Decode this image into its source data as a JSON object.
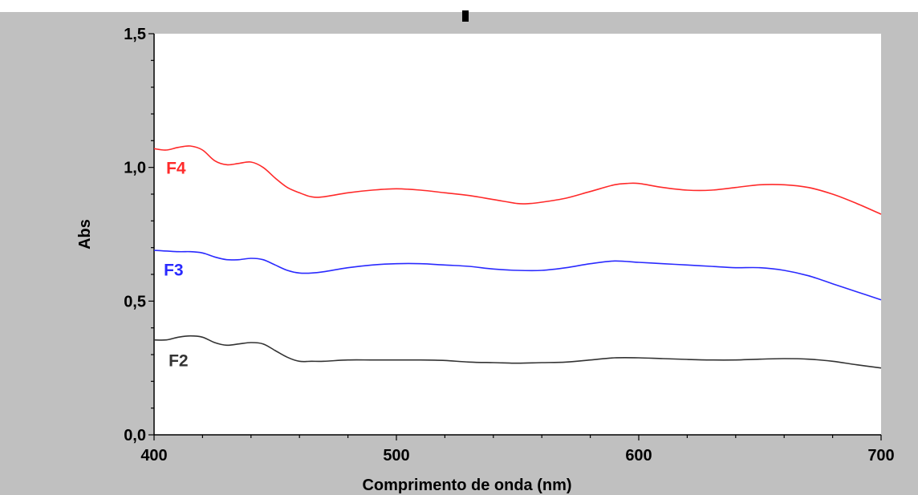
{
  "chart_data": {
    "type": "line",
    "title": "",
    "xlabel": "Comprimento de onda (nm)",
    "ylabel": "Abs",
    "xlim": [
      400,
      700
    ],
    "ylim": [
      0.0,
      1.5
    ],
    "x_ticks": [
      "400",
      "500",
      "600",
      "700"
    ],
    "y_ticks": [
      "0,0",
      "0,5",
      "1,0",
      "1,5"
    ],
    "grid": false,
    "legend": "inline-left",
    "colors": {
      "frame_background": "#c0c0c0",
      "plot_background": "#ffffff",
      "F4": "#ff2a2a",
      "F3": "#2a2aff",
      "F2": "#333333"
    },
    "series": [
      {
        "name": "F4",
        "color": "#ff2a2a",
        "x": [
          400,
          405,
          410,
          415,
          420,
          425,
          430,
          435,
          440,
          445,
          450,
          455,
          460,
          465,
          470,
          480,
          490,
          500,
          510,
          520,
          530,
          540,
          550,
          555,
          560,
          570,
          580,
          590,
          595,
          600,
          610,
          620,
          630,
          640,
          650,
          660,
          670,
          680,
          690,
          700
        ],
        "y": [
          1.07,
          1.065,
          1.075,
          1.08,
          1.065,
          1.025,
          1.01,
          1.015,
          1.02,
          1.0,
          0.96,
          0.925,
          0.905,
          0.89,
          0.89,
          0.905,
          0.915,
          0.92,
          0.915,
          0.905,
          0.895,
          0.88,
          0.865,
          0.865,
          0.87,
          0.885,
          0.91,
          0.935,
          0.94,
          0.94,
          0.925,
          0.915,
          0.915,
          0.925,
          0.935,
          0.935,
          0.925,
          0.9,
          0.865,
          0.825
        ]
      },
      {
        "name": "F3",
        "color": "#2a2aff",
        "x": [
          400,
          410,
          415,
          420,
          425,
          430,
          435,
          440,
          445,
          450,
          455,
          460,
          465,
          470,
          480,
          490,
          500,
          510,
          520,
          530,
          540,
          550,
          560,
          570,
          580,
          590,
          600,
          610,
          620,
          630,
          640,
          650,
          660,
          670,
          680,
          690,
          700
        ],
        "y": [
          0.69,
          0.685,
          0.685,
          0.68,
          0.665,
          0.655,
          0.655,
          0.66,
          0.655,
          0.635,
          0.615,
          0.605,
          0.605,
          0.61,
          0.625,
          0.635,
          0.64,
          0.64,
          0.635,
          0.63,
          0.62,
          0.615,
          0.615,
          0.625,
          0.64,
          0.65,
          0.645,
          0.64,
          0.635,
          0.63,
          0.625,
          0.625,
          0.615,
          0.595,
          0.565,
          0.535,
          0.505
        ]
      },
      {
        "name": "F2",
        "color": "#333333",
        "x": [
          400,
          405,
          410,
          415,
          420,
          425,
          430,
          435,
          440,
          445,
          450,
          455,
          460,
          465,
          470,
          480,
          490,
          500,
          510,
          520,
          530,
          540,
          550,
          560,
          570,
          580,
          590,
          600,
          610,
          620,
          630,
          640,
          650,
          660,
          670,
          680,
          690,
          700
        ],
        "y": [
          0.355,
          0.355,
          0.365,
          0.37,
          0.365,
          0.345,
          0.335,
          0.34,
          0.345,
          0.34,
          0.315,
          0.29,
          0.275,
          0.275,
          0.275,
          0.28,
          0.28,
          0.28,
          0.28,
          0.278,
          0.272,
          0.27,
          0.268,
          0.27,
          0.272,
          0.28,
          0.288,
          0.288,
          0.285,
          0.282,
          0.28,
          0.28,
          0.283,
          0.285,
          0.283,
          0.275,
          0.262,
          0.25
        ]
      }
    ],
    "series_labels": [
      {
        "name": "F4",
        "x": 405,
        "y": 1.0
      },
      {
        "name": "F3",
        "x": 404,
        "y": 0.62
      },
      {
        "name": "F2",
        "x": 406,
        "y": 0.28
      }
    ]
  }
}
